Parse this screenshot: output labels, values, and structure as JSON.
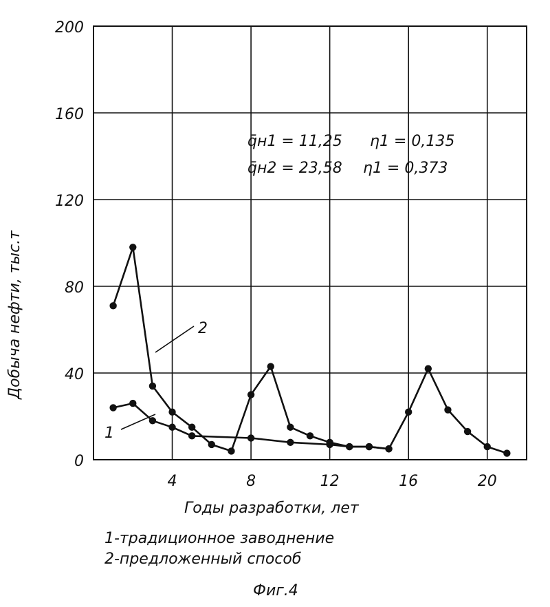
{
  "chart_data": {
    "type": "line",
    "xlabel": "Годы разработки, лет",
    "ylabel": "Добыча нефти, тыс.т",
    "xlim": [
      0,
      22
    ],
    "ylim": [
      0,
      200
    ],
    "x_ticks": [
      4,
      8,
      12,
      16,
      20
    ],
    "y_ticks": [
      0,
      40,
      80,
      120,
      160,
      200
    ],
    "x_tick_labels": [
      "4",
      "8",
      "12",
      "16",
      "20"
    ],
    "y_tick_labels": [
      "0",
      "40",
      "80",
      "120",
      "160",
      "200"
    ],
    "grid": true,
    "series": [
      {
        "name": "1",
        "x": [
          1,
          2,
          3,
          4,
          5,
          8,
          10,
          12,
          13,
          14,
          15
        ],
        "y": [
          24,
          26,
          18,
          15,
          11,
          10,
          8,
          7,
          6,
          6,
          5
        ]
      },
      {
        "name": "2",
        "x": [
          1,
          2,
          3,
          4,
          5,
          6,
          7,
          8,
          9,
          10,
          11,
          12,
          13,
          14,
          15,
          16,
          17,
          18,
          19,
          20,
          21
        ],
        "y": [
          71,
          98,
          34,
          22,
          15,
          7,
          4,
          30,
          43,
          15,
          11,
          8,
          6,
          6,
          5,
          22,
          42,
          23,
          13,
          6,
          3
        ]
      }
    ],
    "annotations": [
      "q̄н1 = 11,25",
      "η1 = 0,135",
      "q̄н2 = 23,58",
      "η1 = 0,373"
    ]
  },
  "legend": [
    "1-традиционное заводнение",
    "2-предложенный способ"
  ],
  "figure_caption": "Фиг.4"
}
